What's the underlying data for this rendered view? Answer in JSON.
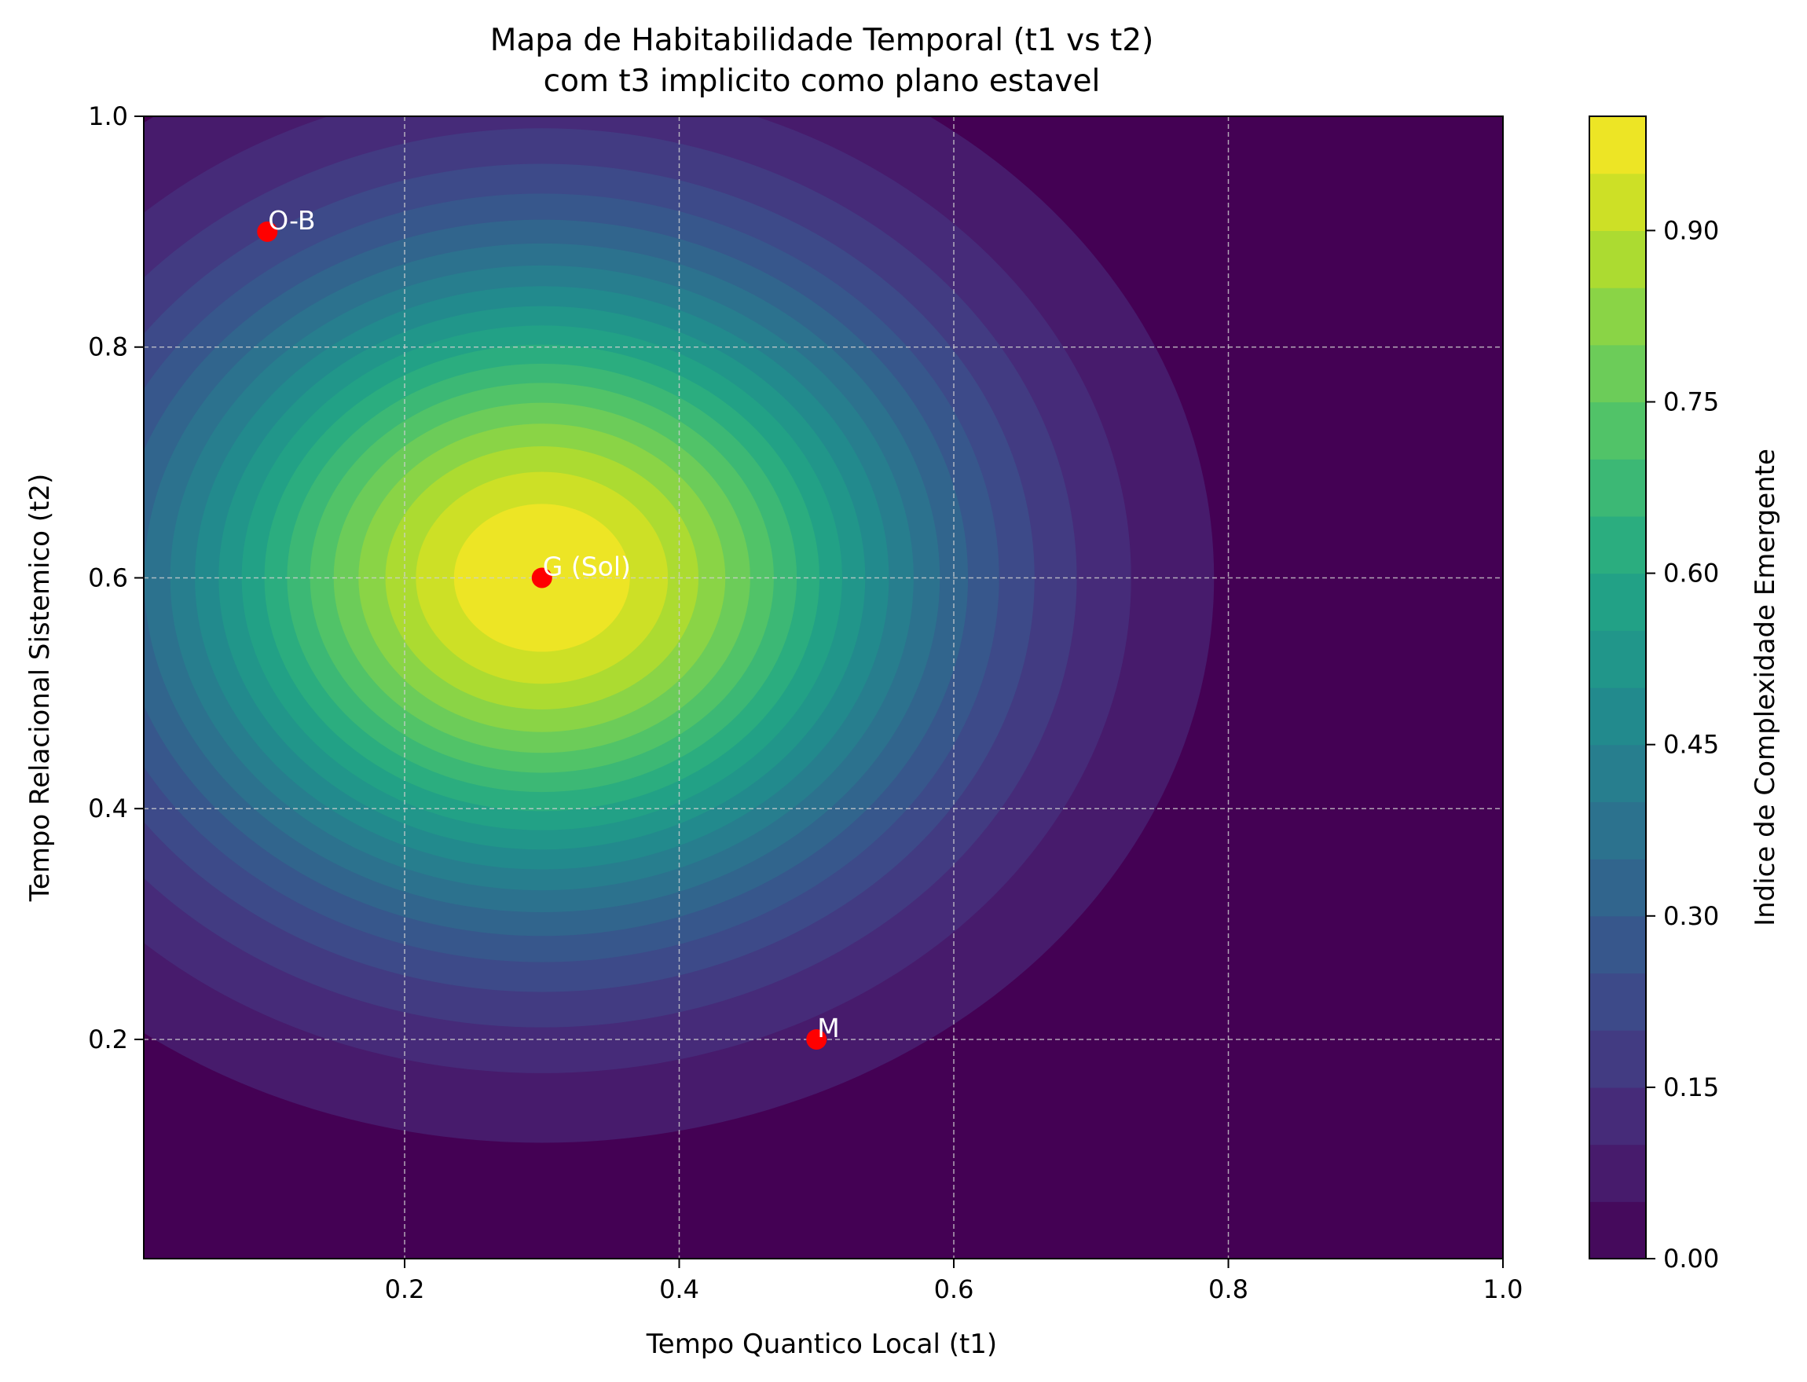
{
  "chart_data": {
    "type": "heatmap",
    "subtype": "filled-contour",
    "title": "Mapa de Habitabilidade Temporal (t1 vs t2)",
    "subtitle": "com t3 implicito como plano estavel",
    "xlabel": "Tempo Quantico Local (t1)",
    "ylabel": "Tempo Relacional Sistemico (t2)",
    "colorbar_label": "Indice de Complexidade Emergente",
    "xlim": [
      0.01,
      1.0
    ],
    "ylim": [
      0.01,
      1.0
    ],
    "x_ticks": [
      "0.2",
      "0.4",
      "0.6",
      "0.8",
      "1.0"
    ],
    "y_ticks": [
      "0.2",
      "0.4",
      "0.6",
      "0.8",
      "1.0"
    ],
    "colorbar_ticks": [
      "0.00",
      "0.15",
      "0.30",
      "0.45",
      "0.60",
      "0.75",
      "0.90"
    ],
    "colorbar_range": [
      0.0,
      1.0
    ],
    "levels": 20,
    "colormap": "viridis",
    "grid": true,
    "surface": {
      "peak": {
        "x": 0.3,
        "y": 0.6,
        "value": 1.0
      },
      "sigma_x": 0.2,
      "sigma_y": 0.2
    },
    "points": [
      {
        "label": "O-B",
        "x": 0.1,
        "y": 0.9
      },
      {
        "label": "G (Sol)",
        "x": 0.3,
        "y": 0.6
      },
      {
        "label": "M",
        "x": 0.5,
        "y": 0.2
      }
    ],
    "point_color": "#ff0000",
    "point_label_color": "#ffffff"
  }
}
